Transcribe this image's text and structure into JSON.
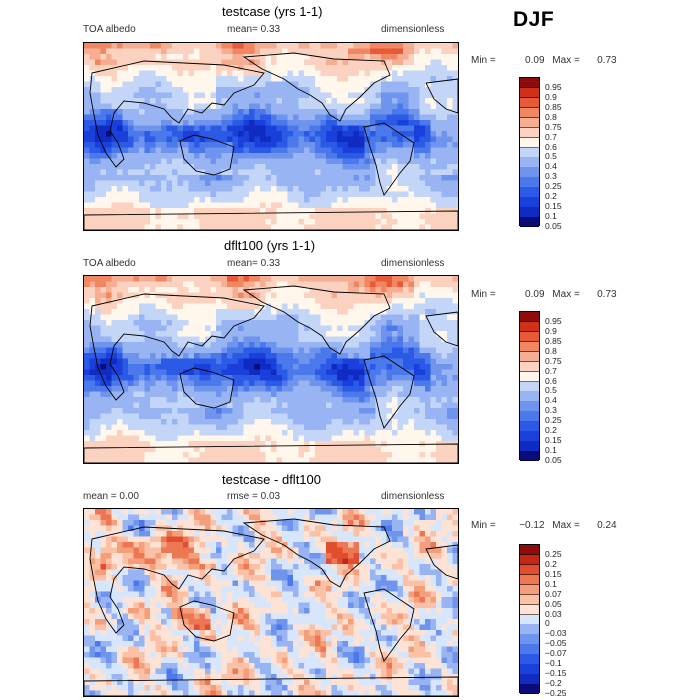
{
  "season": "DJF",
  "panels": [
    {
      "title": "testcase (yrs 1-1)",
      "left_label": "TOA albedo",
      "center_label": "mean=     0.33",
      "right_label": "dimensionless",
      "min_label": "Min =",
      "min_value": "0.09",
      "max_label": "Max =",
      "max_value": "0.73",
      "kind": "abs",
      "seed": 1,
      "levels": [
        "0.95",
        "0.9",
        "0.85",
        "0.8",
        "0.75",
        "0.7",
        "0.6",
        "0.5",
        "0.4",
        "0.3",
        "0.25",
        "0.2",
        "0.15",
        "0.1",
        "0.05"
      ]
    },
    {
      "title": "dflt100 (yrs 1-1)",
      "left_label": "TOA albedo",
      "center_label": "mean=     0.33",
      "right_label": "dimensionless",
      "min_label": "Min =",
      "min_value": "0.09",
      "max_label": "Max =",
      "max_value": "0.73",
      "kind": "abs",
      "seed": 2,
      "levels": [
        "0.95",
        "0.9",
        "0.85",
        "0.8",
        "0.75",
        "0.7",
        "0.6",
        "0.5",
        "0.4",
        "0.3",
        "0.25",
        "0.2",
        "0.15",
        "0.1",
        "0.05"
      ]
    },
    {
      "title": "testcase - dflt100",
      "left_label": "mean =     0.00",
      "center_label": "rmse =     0.03",
      "right_label": "dimensionless",
      "min_label": "Min =",
      "min_value": "−0.12",
      "max_label": "Max =",
      "max_value": "0.24",
      "kind": "diff",
      "seed": 3,
      "levels": [
        "0.25",
        "0.2",
        "0.15",
        "0.1",
        "0.07",
        "0.05",
        "0.03",
        "0",
        "−0.03",
        "−0.05",
        "−0.07",
        "−0.1",
        "−0.15",
        "−0.2",
        "−0.25"
      ]
    }
  ],
  "chart_data": [
    {
      "type": "heatmap",
      "title": "testcase (yrs 1-1)",
      "variable": "TOA albedo",
      "units": "dimensionless",
      "mean": 0.33,
      "min": 0.09,
      "max": 0.73,
      "contour_levels": [
        0.05,
        0.1,
        0.15,
        0.2,
        0.25,
        0.3,
        0.4,
        0.5,
        0.6,
        0.7,
        0.75,
        0.8,
        0.85,
        0.9,
        0.95
      ]
    },
    {
      "type": "heatmap",
      "title": "dflt100 (yrs 1-1)",
      "variable": "TOA albedo",
      "units": "dimensionless",
      "mean": 0.33,
      "min": 0.09,
      "max": 0.73,
      "contour_levels": [
        0.05,
        0.1,
        0.15,
        0.2,
        0.25,
        0.3,
        0.4,
        0.5,
        0.6,
        0.7,
        0.75,
        0.8,
        0.85,
        0.9,
        0.95
      ]
    },
    {
      "type": "heatmap",
      "title": "testcase - dflt100",
      "units": "dimensionless",
      "mean": 0.0,
      "rmse": 0.03,
      "min": -0.12,
      "max": 0.24,
      "contour_levels": [
        -0.25,
        -0.2,
        -0.15,
        -0.1,
        -0.07,
        -0.05,
        -0.03,
        0,
        0.03,
        0.05,
        0.07,
        0.1,
        0.15,
        0.2,
        0.25
      ]
    }
  ],
  "colors": {
    "ramp": [
      "#0b0b7a",
      "#0f2bc2",
      "#1a40dc",
      "#2a5ae6",
      "#4b78ea",
      "#6f94ee",
      "#98b4f3",
      "#c4d6f8",
      "#fff6ec",
      "#fbd2bf",
      "#f6ae93",
      "#f08762",
      "#e65a37",
      "#d02f18",
      "#8e0b0b"
    ],
    "diff_ramp": [
      "#0b0b7a",
      "#0f2bc2",
      "#1a40dc",
      "#2a5ae6",
      "#4b78ea",
      "#6f94ee",
      "#98b4f3",
      "#d8e6fb",
      "#fde3d6",
      "#fbc1a6",
      "#f59e7c",
      "#ee7753",
      "#e04e2f",
      "#c22812",
      "#8e0b0b"
    ],
    "land_line": "#000000"
  }
}
